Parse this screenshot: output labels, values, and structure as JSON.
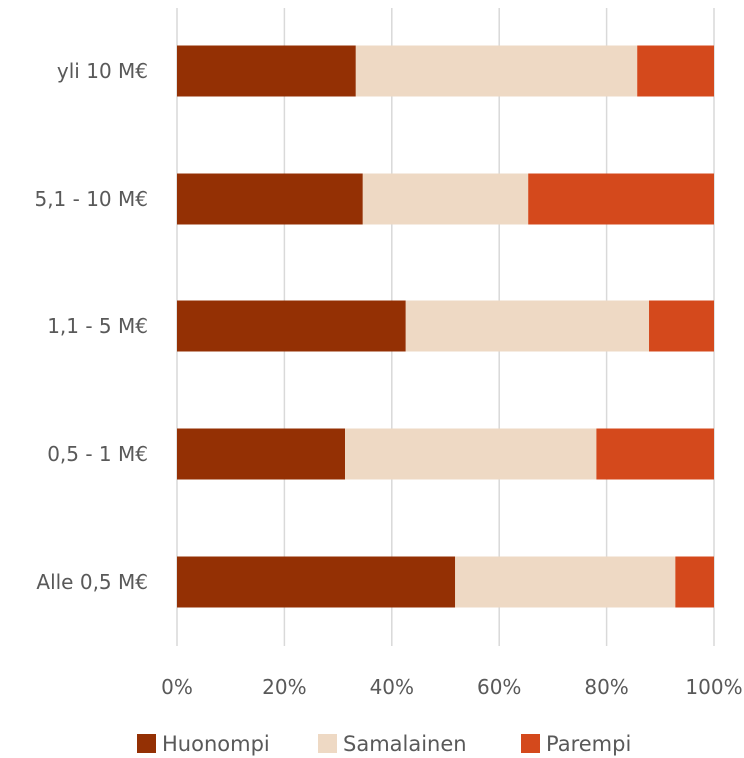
{
  "chart_data": {
    "type": "bar",
    "orientation": "horizontal",
    "stacked": "percent",
    "categories": [
      "yli 10 M€",
      "5,1 - 10 M€",
      "1,1 - 5 M€",
      "0,5 - 1 M€",
      "Alle 0,5 M€"
    ],
    "series": [
      {
        "name": "Huonompi",
        "color": "#943004",
        "values": [
          33.3,
          34.6,
          42.6,
          31.3,
          51.8
        ]
      },
      {
        "name": "Samalainen",
        "color": "#eed9c4",
        "values": [
          52.4,
          30.8,
          45.3,
          46.8,
          41.0
        ]
      },
      {
        "name": "Parempi",
        "color": "#d4491c",
        "values": [
          14.3,
          34.6,
          12.1,
          21.9,
          7.2
        ]
      }
    ],
    "xlim": [
      0,
      100
    ],
    "x_ticks": [
      "0%",
      "20%",
      "40%",
      "60%",
      "80%",
      "100%"
    ],
    "grid": true,
    "legend_position": "bottom"
  }
}
